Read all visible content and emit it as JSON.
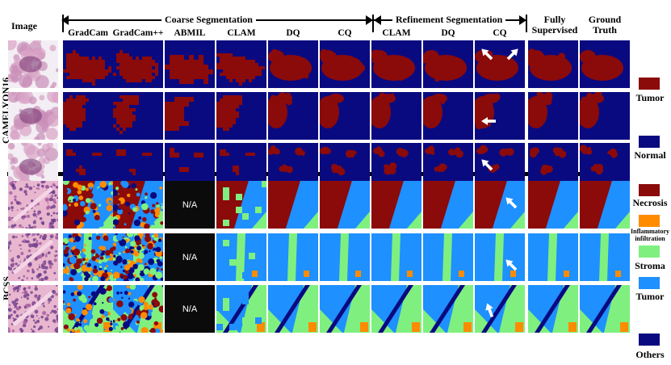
{
  "header": {
    "image_label": "Image",
    "coarse_label": "Coarse Segmentation",
    "refine_label": "Refinement Segmentation",
    "fully_label": "Fully\nSupervised",
    "gt_label": "Ground\nTruth"
  },
  "columns": [
    "GradCam",
    "GradCam++",
    "ABMIL",
    "CLAM",
    "DQ",
    "CQ",
    "CLAM",
    "DQ",
    "CQ"
  ],
  "datasets": [
    {
      "name": "CAMELYON16"
    },
    {
      "name": "BCSS"
    }
  ],
  "na_label": "N/A",
  "legend": {
    "camelyon": [
      {
        "label": "Tumor",
        "color": "#8b0a0a"
      },
      {
        "label": "Normal",
        "color": "#0a0a80"
      }
    ],
    "bcss": [
      {
        "label": "Necrosis",
        "color": "#8b0a0a"
      },
      {
        "label": "Inflammatory\ninfiltration",
        "color": "#ff8c00"
      },
      {
        "label": "Stroma",
        "color": "#7ff07f"
      },
      {
        "label": "Tumor",
        "color": "#1e90ff"
      },
      {
        "label": "Others",
        "color": "#0a0a80"
      }
    ]
  },
  "colors": {
    "tumor_red": "#8b0a0a",
    "navy": "#0a0a80",
    "bcss_blue": "#1e90ff",
    "green": "#7ff07f",
    "orange": "#ff8c00",
    "black": "#000000"
  }
}
